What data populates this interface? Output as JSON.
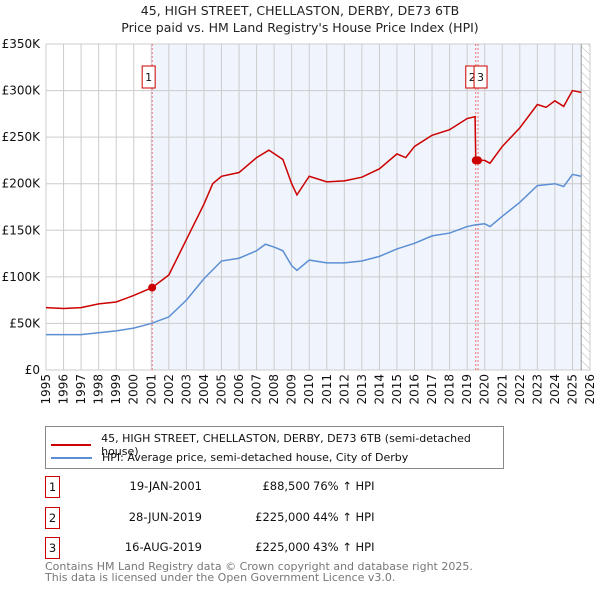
{
  "chart_data": {
    "type": "line",
    "title": "45, HIGH STREET, CHELLASTON, DERBY, DE73 6TB",
    "subtitle": "Price paid vs. HM Land Registry's House Price Index (HPI)",
    "xlim": [
      1995,
      2026
    ],
    "ylim": [
      0,
      350000
    ],
    "yticks": [
      0,
      50000,
      100000,
      150000,
      200000,
      250000,
      300000,
      350000
    ],
    "ytick_labels": [
      "£0",
      "£50K",
      "£100K",
      "£150K",
      "£200K",
      "£250K",
      "£300K",
      "£350K"
    ],
    "xticks": [
      "1995",
      "1996",
      "1997",
      "1998",
      "1999",
      "2000",
      "2001",
      "2002",
      "2003",
      "2004",
      "2005",
      "2006",
      "2007",
      "2008",
      "2009",
      "2010",
      "2011",
      "2012",
      "2013",
      "2014",
      "2015",
      "2016",
      "2017",
      "2018",
      "2019",
      "2020",
      "2021",
      "2022",
      "2023",
      "2024",
      "2025",
      "2026"
    ],
    "grid": true,
    "series": [
      {
        "name": "45, HIGH STREET, CHELLASTON, DERBY, DE73 6TB (semi-detached house)",
        "color": "#cc0000",
        "x": [
          1995,
          1996,
          1997,
          1998,
          1999,
          2000,
          2001.05,
          2002,
          2003,
          2004,
          2004.5,
          2005,
          2006,
          2007,
          2007.7,
          2008.5,
          2009,
          2009.3,
          2010,
          2011,
          2012,
          2013,
          2014,
          2015,
          2015.5,
          2016,
          2017,
          2018,
          2019,
          2019.45,
          2019.49,
          2019.62,
          2020,
          2020.3,
          2021,
          2022,
          2023,
          2023.5,
          2024,
          2024.5,
          2025,
          2025.5
        ],
        "y": [
          67000,
          66000,
          67000,
          71000,
          73000,
          80000,
          88500,
          102000,
          140000,
          178000,
          200000,
          208000,
          212000,
          228000,
          236000,
          226000,
          200000,
          188000,
          208000,
          202000,
          203000,
          207000,
          216000,
          232000,
          228000,
          240000,
          252000,
          258000,
          270000,
          272000,
          225000,
          225000,
          225000,
          222000,
          240000,
          260000,
          285000,
          282000,
          289000,
          283000,
          300000,
          298000
        ]
      },
      {
        "name": "HPI: Average price, semi-detached house, City of Derby",
        "color": "#5b8fd4",
        "x": [
          1995,
          1996,
          1997,
          1998,
          1999,
          2000,
          2001,
          2002,
          2003,
          2004,
          2005,
          2006,
          2007,
          2007.5,
          2008,
          2008.5,
          2009,
          2009.3,
          2010,
          2011,
          2012,
          2013,
          2014,
          2015,
          2016,
          2017,
          2018,
          2019,
          2019.5,
          2020,
          2020.3,
          2021,
          2022,
          2023,
          2024,
          2024.5,
          2025,
          2025.5
        ],
        "y": [
          38000,
          38000,
          38000,
          40000,
          42000,
          45000,
          50000,
          57000,
          75000,
          98000,
          117000,
          120000,
          128000,
          135000,
          132000,
          128000,
          112000,
          107000,
          118000,
          115000,
          115000,
          117000,
          122000,
          130000,
          136000,
          144000,
          147000,
          154000,
          156000,
          157000,
          154000,
          165000,
          180000,
          198000,
          200000,
          197000,
          210000,
          208000
        ]
      }
    ],
    "sales": [
      {
        "id": "1",
        "date": "19-JAN-2001",
        "x": 2001.05,
        "price": "£88,500",
        "value": 88500,
        "hpi": "76% ↑ HPI"
      },
      {
        "id": "2",
        "date": "28-JUN-2019",
        "x": 2019.49,
        "price": "£225,000",
        "value": 225000,
        "hpi": "44% ↑ HPI"
      },
      {
        "id": "3",
        "date": "16-AUG-2019",
        "x": 2019.62,
        "price": "£225,000",
        "value": 225000,
        "hpi": "43% ↑ HPI"
      }
    ],
    "shaded_from": 2001.05,
    "hatched_from": 2025.5,
    "legend_position": "below"
  },
  "footer": {
    "line1": "Contains HM Land Registry data © Crown copyright and database right 2025.",
    "line2": "This data is licensed under the Open Government Licence v3.0."
  }
}
